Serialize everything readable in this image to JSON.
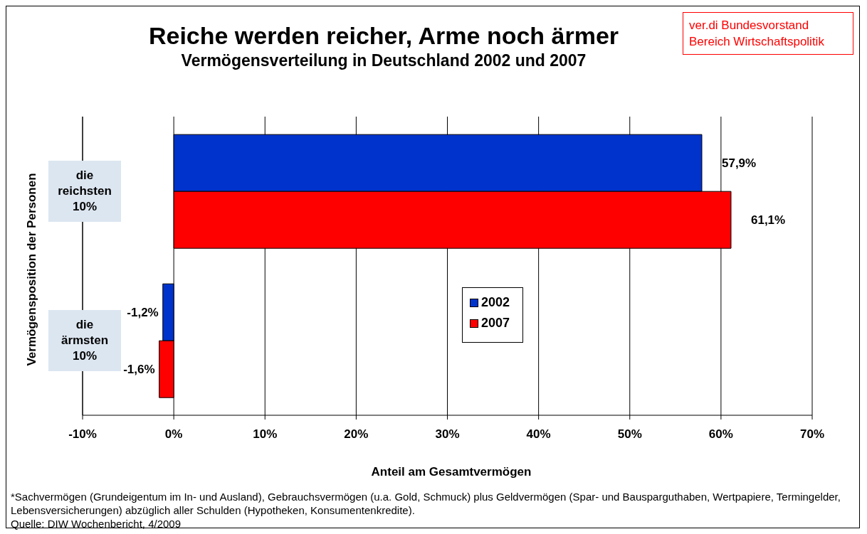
{
  "chart_data": {
    "type": "bar",
    "orientation": "horizontal",
    "title": "Reiche werden reicher, Arme noch ärmer",
    "subtitle": "Vermögensverteilung in Deutschland 2002 und 2007",
    "xlabel": "Anteil am Gesamtvermögen",
    "ylabel": "Vermögensposition der Personen",
    "categories": [
      "die reichsten 10%",
      "die ärmsten 10%"
    ],
    "series": [
      {
        "name": "2002",
        "color": "#0033cc",
        "values": [
          57.9,
          -1.2
        ],
        "value_labels": [
          "57,9%",
          "-1,2%"
        ]
      },
      {
        "name": "2007",
        "color": "#ff0000",
        "values": [
          61.1,
          -1.6
        ],
        "value_labels": [
          "61,1%",
          "-1,6%"
        ]
      }
    ],
    "xlim": [
      -10,
      70
    ],
    "xticks": [
      {
        "value": -10,
        "label": "-10%"
      },
      {
        "value": 0,
        "label": "0%"
      },
      {
        "value": 10,
        "label": "10%"
      },
      {
        "value": 20,
        "label": "20%"
      },
      {
        "value": 30,
        "label": "30%"
      },
      {
        "value": 40,
        "label": "40%"
      },
      {
        "value": 50,
        "label": "50%"
      },
      {
        "value": 60,
        "label": "60%"
      },
      {
        "value": 70,
        "label": "70%"
      }
    ],
    "grid": "x",
    "legend": "bottom",
    "annotations": [
      "ver.di Bundesvorstand Bereich Wirtschaftspolitik",
      "*Sachvermögen (Grundeigentum im In- und Ausland), Gebrauchsvermögen (u.a. Gold, Schmuck) plus Geldvermögen (Spar- und Bausparguthaben, Wertpapiere, Termingelder, Lebensversicherungen) abzüglich aller Schulden (Hypotheken, Konsumentenkredite).",
      "Quelle: DIW Wochenbericht, 4/2009"
    ]
  }
}
